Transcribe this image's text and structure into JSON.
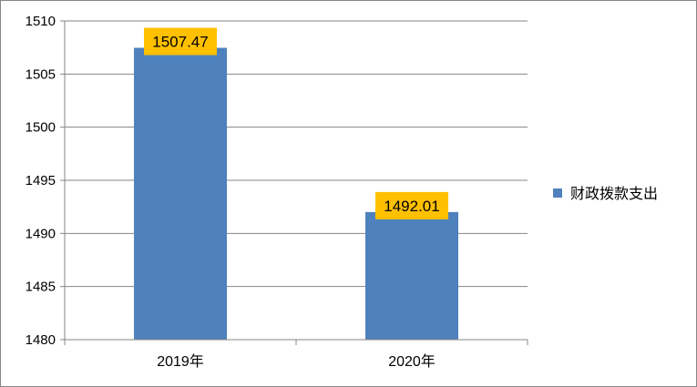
{
  "chart_data": {
    "type": "bar",
    "categories": [
      "2019年",
      "2020年"
    ],
    "series": [
      {
        "name": "财政拨款支出",
        "values": [
          1507.47,
          1492.01
        ],
        "color": "#4f81bd"
      }
    ],
    "data_labels": [
      "1507.47",
      "1492.01"
    ],
    "data_label_background": "#ffc000",
    "y_ticks": [
      1480,
      1485,
      1490,
      1495,
      1500,
      1505,
      1510
    ],
    "ylim": [
      1480,
      1510
    ],
    "grid": true,
    "legend_position": "right",
    "title": "",
    "xlabel": "",
    "ylabel": ""
  }
}
